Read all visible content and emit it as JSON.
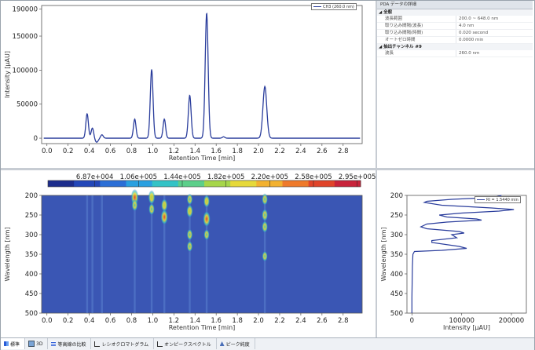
{
  "colors": {
    "trace": "#2a3d9c",
    "heatmap_bg": "#3a56b4"
  },
  "chromatogram": {
    "chart_data": {
      "type": "line",
      "xlabel": "Retention Time [min]",
      "ylabel": "Intensity [µAU]",
      "xlim": [
        -0.05,
        2.98
      ],
      "ylim": [
        -8000,
        195000
      ],
      "x_ticks": [
        "0.0",
        "0.2",
        "0.4",
        "0.6",
        "0.8",
        "1.0",
        "1.2",
        "1.4",
        "1.6",
        "1.8",
        "2.0",
        "2.2",
        "2.4",
        "2.6",
        "2.8"
      ],
      "y_ticks": [
        "0",
        "50000",
        "100000",
        "150000",
        "190000"
      ],
      "baseline": 0,
      "peaks": [
        {
          "rt": 0.38,
          "height": 36000,
          "width": 0.012
        },
        {
          "rt": 0.43,
          "height": 15000,
          "width": 0.012
        },
        {
          "rt": 0.47,
          "height": -6000,
          "width": 0.015
        },
        {
          "rt": 0.52,
          "height": 5000,
          "width": 0.012
        },
        {
          "rt": 0.83,
          "height": 28000,
          "width": 0.012
        },
        {
          "rt": 0.99,
          "height": 101000,
          "width": 0.013
        },
        {
          "rt": 1.11,
          "height": 28000,
          "width": 0.012
        },
        {
          "rt": 1.35,
          "height": 63000,
          "width": 0.013
        },
        {
          "rt": 1.51,
          "height": 184000,
          "width": 0.014
        },
        {
          "rt": 1.67,
          "height": 2000,
          "width": 0.012
        },
        {
          "rt": 2.06,
          "height": 76000,
          "width": 0.018
        }
      ],
      "legend": "CH3 (260.0 nm)",
      "legend_position": "top-right"
    }
  },
  "contour": {
    "chart_data": {
      "type": "heatmap",
      "xlabel": "Retention Time [min]",
      "ylabel": "Wavelength [nm]",
      "xlim": [
        -0.05,
        2.98
      ],
      "ylim": [
        200,
        500
      ],
      "x_ticks": [
        "0.0",
        "0.2",
        "0.4",
        "0.6",
        "0.8",
        "1.0",
        "1.2",
        "1.4",
        "1.6",
        "1.8",
        "2.0",
        "2.2",
        "2.4",
        "2.6",
        "2.8"
      ],
      "y_ticks": [
        "200",
        "250",
        "300",
        "350",
        "400",
        "450",
        "500"
      ],
      "colorbar_labels": [
        "6.87e+004",
        "1.06e+005",
        "1.44e+005",
        "1.82e+005",
        "2.20e+005",
        "2.58e+005",
        "2.95e+005"
      ],
      "colorbar_colors": [
        "#1d2d8c",
        "#2347b8",
        "#2c6fd6",
        "#2aa0e0",
        "#34c3c6",
        "#5ccf8a",
        "#a6d64a",
        "#e6d93a",
        "#f2b130",
        "#ee7a2b",
        "#e0442a",
        "#c8233a"
      ],
      "spots": [
        {
          "rt": 0.83,
          "wl": 205,
          "level": 0.95
        },
        {
          "rt": 0.83,
          "wl": 225,
          "level": 0.45
        },
        {
          "rt": 0.99,
          "wl": 205,
          "level": 0.7
        },
        {
          "rt": 0.99,
          "wl": 235,
          "level": 0.45
        },
        {
          "rt": 1.11,
          "wl": 225,
          "level": 0.6
        },
        {
          "rt": 1.11,
          "wl": 255,
          "level": 0.85
        },
        {
          "rt": 1.35,
          "wl": 210,
          "level": 0.4
        },
        {
          "rt": 1.35,
          "wl": 240,
          "level": 0.6
        },
        {
          "rt": 1.35,
          "wl": 300,
          "level": 0.4
        },
        {
          "rt": 1.35,
          "wl": 330,
          "level": 0.35
        },
        {
          "rt": 1.51,
          "wl": 215,
          "level": 0.55
        },
        {
          "rt": 1.51,
          "wl": 260,
          "level": 0.9
        },
        {
          "rt": 1.51,
          "wl": 300,
          "level": 0.35
        },
        {
          "rt": 2.06,
          "wl": 210,
          "level": 0.45
        },
        {
          "rt": 2.06,
          "wl": 250,
          "level": 0.5
        },
        {
          "rt": 2.06,
          "wl": 280,
          "level": 0.45
        },
        {
          "rt": 2.06,
          "wl": 355,
          "level": 0.3
        }
      ],
      "streaks": [
        0.38,
        0.43,
        0.52,
        0.83,
        0.99,
        1.11,
        1.35,
        1.51,
        2.06
      ]
    }
  },
  "spectrum": {
    "chart_data": {
      "type": "line",
      "xlabel": "Intensity [µAU]",
      "ylabel": "Wavelength [nm]",
      "xlim": [
        -10000,
        230000
      ],
      "ylim": [
        200,
        500
      ],
      "x_ticks": [
        "0",
        "100000",
        "200000"
      ],
      "y_ticks": [
        "200",
        "250",
        "300",
        "350",
        "400",
        "450",
        "500"
      ],
      "legend": "RI = 1.5440 min",
      "legend_position": "top-right",
      "points": [
        [
          200,
          180000
        ],
        [
          205,
          165000
        ],
        [
          210,
          80000
        ],
        [
          215,
          30000
        ],
        [
          218,
          25000
        ],
        [
          225,
          60000
        ],
        [
          232,
          160000
        ],
        [
          236,
          205000
        ],
        [
          240,
          175000
        ],
        [
          245,
          100000
        ],
        [
          250,
          55000
        ],
        [
          255,
          70000
        ],
        [
          260,
          130000
        ],
        [
          263,
          140000
        ],
        [
          268,
          70000
        ],
        [
          273,
          30000
        ],
        [
          280,
          18000
        ],
        [
          285,
          30000
        ],
        [
          292,
          95000
        ],
        [
          296,
          105000
        ],
        [
          300,
          80000
        ],
        [
          308,
          90000
        ],
        [
          315,
          40000
        ],
        [
          320,
          40000
        ],
        [
          330,
          95000
        ],
        [
          335,
          110000
        ],
        [
          340,
          60000
        ],
        [
          343,
          5000
        ],
        [
          350,
          2000
        ],
        [
          380,
          1000
        ],
        [
          420,
          500
        ],
        [
          460,
          0
        ],
        [
          500,
          0
        ]
      ]
    }
  },
  "properties": {
    "title": "PDA データの詳細",
    "categories": [
      {
        "name": "全般",
        "rows": [
          {
            "key": "波長範囲",
            "value": "200.0 ~ 648.0 nm"
          },
          {
            "key": "取り込み間隔(波長)",
            "value": "4.0 nm"
          },
          {
            "key": "取り込み間隔(時間)",
            "value": "0.020 second"
          },
          {
            "key": "オートゼロ時間",
            "value": "0.0000 min"
          }
        ]
      },
      {
        "name": "抽出チャンネル #9",
        "rows": [
          {
            "key": "波長",
            "value": "260.0 nm"
          }
        ]
      }
    ]
  },
  "tabs": [
    {
      "icon": "grid-icon",
      "label": "標準",
      "active": true
    },
    {
      "icon": "cube-icon",
      "label": "3D",
      "active": false
    },
    {
      "icon": "compare-icon",
      "label": "等高線の比較",
      "active": false
    },
    {
      "icon": "chromatogram-icon",
      "label": "レシオクロマトグラム",
      "active": false
    },
    {
      "icon": "spectrum-icon",
      "label": "オンピークスペクトル",
      "active": false
    },
    {
      "icon": "purity-icon",
      "label": "ピーク純度",
      "active": false
    }
  ]
}
